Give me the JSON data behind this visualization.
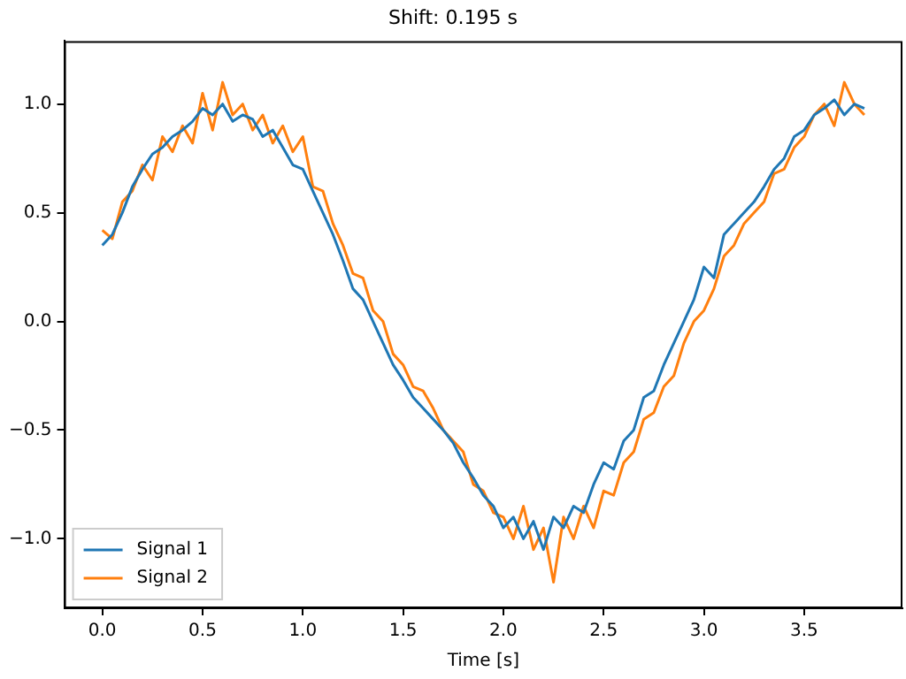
{
  "chart_data": {
    "type": "line",
    "title": "Shift: 0.195 s",
    "xlabel": "Time [s]",
    "x": [
      0,
      0.05,
      0.1,
      0.15,
      0.2,
      0.25,
      0.3,
      0.35,
      0.4,
      0.45,
      0.5,
      0.55,
      0.6,
      0.65,
      0.7,
      0.75,
      0.8,
      0.85,
      0.9,
      0.95,
      1.0,
      1.05,
      1.1,
      1.15,
      1.2,
      1.25,
      1.3,
      1.35,
      1.4,
      1.45,
      1.5,
      1.55,
      1.6,
      1.65,
      1.7,
      1.75,
      1.8,
      1.85,
      1.9,
      1.95,
      2.0,
      2.05,
      2.1,
      2.15,
      2.2,
      2.25,
      2.3,
      2.35,
      2.4,
      2.45,
      2.5,
      2.55,
      2.6,
      2.65,
      2.7,
      2.75,
      2.8,
      2.85,
      2.9,
      2.95,
      3.0,
      3.05,
      3.1,
      3.15,
      3.2,
      3.25,
      3.3,
      3.35,
      3.4,
      3.45,
      3.5,
      3.55,
      3.6,
      3.65,
      3.7,
      3.75,
      3.8
    ],
    "series": [
      {
        "name": "Signal 1",
        "color": "#1f77b4",
        "values": [
          0.35,
          0.4,
          0.5,
          0.62,
          0.7,
          0.77,
          0.8,
          0.85,
          0.88,
          0.92,
          0.98,
          0.95,
          1.0,
          0.92,
          0.95,
          0.93,
          0.85,
          0.88,
          0.8,
          0.72,
          0.7,
          0.6,
          0.5,
          0.4,
          0.28,
          0.15,
          0.1,
          0.0,
          -0.1,
          -0.2,
          -0.27,
          -0.35,
          -0.4,
          -0.45,
          -0.5,
          -0.56,
          -0.65,
          -0.72,
          -0.8,
          -0.85,
          -0.95,
          -0.9,
          -1.0,
          -0.92,
          -1.05,
          -0.9,
          -0.95,
          -0.85,
          -0.88,
          -0.75,
          -0.65,
          -0.68,
          -0.55,
          -0.5,
          -0.35,
          -0.32,
          -0.2,
          -0.1,
          0.0,
          0.1,
          0.25,
          0.2,
          0.4,
          0.45,
          0.5,
          0.55,
          0.62,
          0.7,
          0.75,
          0.85,
          0.88,
          0.95,
          0.98,
          1.02,
          0.95,
          1.0,
          0.98
        ]
      },
      {
        "name": "Signal 2",
        "color": "#ff7f0e",
        "values": [
          0.42,
          0.38,
          0.55,
          0.6,
          0.72,
          0.65,
          0.85,
          0.78,
          0.9,
          0.82,
          1.05,
          0.88,
          1.1,
          0.95,
          1.0,
          0.88,
          0.95,
          0.82,
          0.9,
          0.78,
          0.85,
          0.62,
          0.6,
          0.45,
          0.35,
          0.22,
          0.2,
          0.05,
          0.0,
          -0.15,
          -0.2,
          -0.3,
          -0.32,
          -0.4,
          -0.5,
          -0.55,
          -0.6,
          -0.75,
          -0.78,
          -0.88,
          -0.9,
          -1.0,
          -0.85,
          -1.05,
          -0.95,
          -1.2,
          -0.9,
          -1.0,
          -0.85,
          -0.95,
          -0.78,
          -0.8,
          -0.65,
          -0.6,
          -0.45,
          -0.42,
          -0.3,
          -0.25,
          -0.1,
          0.0,
          0.05,
          0.15,
          0.3,
          0.35,
          0.45,
          0.5,
          0.55,
          0.68,
          0.7,
          0.8,
          0.85,
          0.95,
          1.0,
          0.9,
          1.1,
          1.0,
          0.95
        ]
      }
    ],
    "xlim": [
      -0.19,
      3.99
    ],
    "ylim": [
      -1.32,
      1.29
    ],
    "xticks": [
      {
        "value": 0,
        "label": "0.0"
      },
      {
        "value": 0.5,
        "label": "0.5"
      },
      {
        "value": 1,
        "label": "1.0"
      },
      {
        "value": 1.5,
        "label": "1.5"
      },
      {
        "value": 2,
        "label": "2.0"
      },
      {
        "value": 2.5,
        "label": "2.5"
      },
      {
        "value": 3,
        "label": "3.0"
      },
      {
        "value": 3.5,
        "label": "3.5"
      }
    ],
    "yticks": [
      {
        "value": -1,
        "label": "−1.0"
      },
      {
        "value": -0.5,
        "label": "−0.5"
      },
      {
        "value": 0,
        "label": "0.0"
      },
      {
        "value": 0.5,
        "label": "0.5"
      },
      {
        "value": 1,
        "label": "1.0"
      }
    ],
    "legend": "lower left",
    "marker": "none",
    "line_style": "solid",
    "grid": false
  }
}
